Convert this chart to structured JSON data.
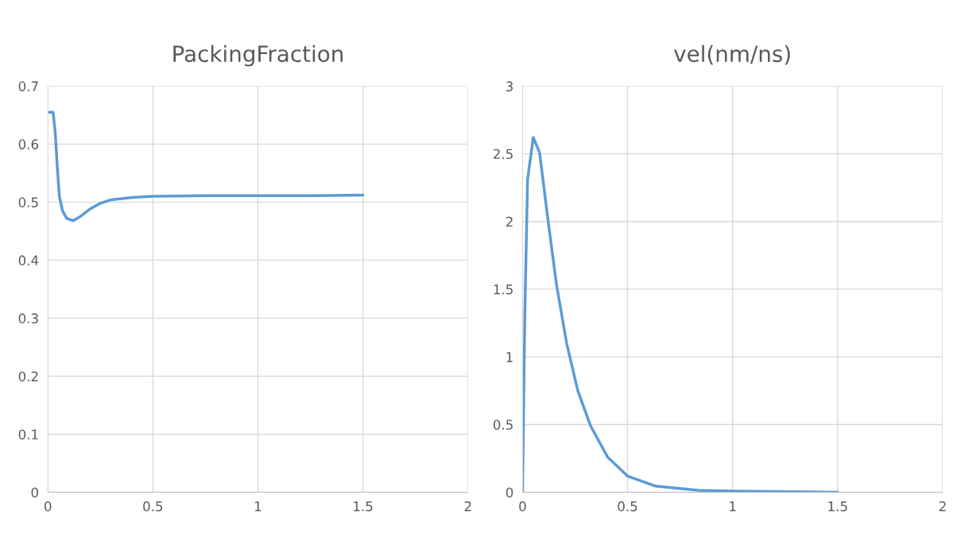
{
  "chart_data": [
    {
      "type": "line",
      "title": "PackingFraction",
      "xlim": [
        0,
        2
      ],
      "xticks": [
        0,
        0.5,
        1,
        1.5,
        2
      ],
      "ylim": [
        0,
        0.7
      ],
      "yticks": [
        0,
        0.1,
        0.2,
        0.3,
        0.4,
        0.5,
        0.6,
        0.7
      ],
      "grid": true,
      "series": [
        {
          "color": "#5b9bd5",
          "x": [
            0,
            0.025,
            0.035,
            0.045,
            0.055,
            0.07,
            0.09,
            0.12,
            0.15,
            0.2,
            0.25,
            0.3,
            0.4,
            0.5,
            0.75,
            1.0,
            1.25,
            1.5
          ],
          "values": [
            0.655,
            0.655,
            0.62,
            0.56,
            0.51,
            0.485,
            0.472,
            0.468,
            0.474,
            0.488,
            0.498,
            0.504,
            0.508,
            0.51,
            0.511,
            0.511,
            0.511,
            0.512
          ]
        }
      ]
    },
    {
      "type": "line",
      "title": "vel(nm/ns)",
      "xlim": [
        0,
        2
      ],
      "xticks": [
        0,
        0.5,
        1,
        1.5,
        2
      ],
      "ylim": [
        0,
        3
      ],
      "yticks": [
        0,
        0.5,
        1,
        1.5,
        2,
        2.5,
        3
      ],
      "grid": true,
      "series": [
        {
          "color": "#5b9bd5",
          "x": [
            0,
            0.011,
            0.024,
            0.051,
            0.081,
            0.122,
            0.162,
            0.21,
            0.263,
            0.324,
            0.405,
            0.5,
            0.635,
            0.838,
            1.0,
            1.5
          ],
          "values": [
            0,
            1.33,
            2.31,
            2.62,
            2.51,
            2.0,
            1.53,
            1.1,
            0.75,
            0.49,
            0.26,
            0.12,
            0.045,
            0.015,
            0.008,
            0
          ]
        }
      ]
    }
  ]
}
